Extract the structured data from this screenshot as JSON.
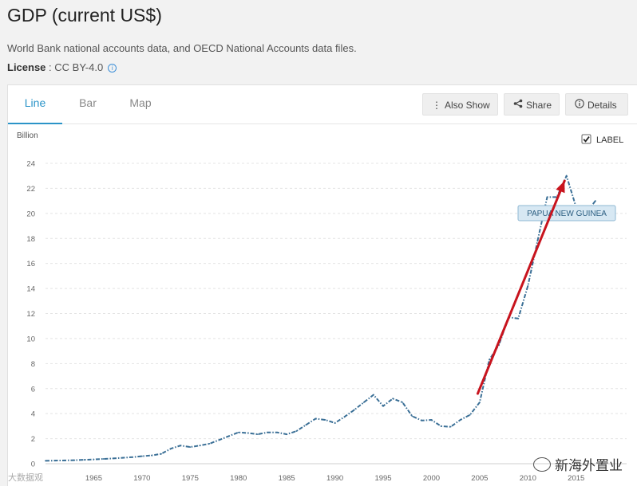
{
  "header": {
    "title": "GDP (current US$)",
    "source": "World Bank national accounts data, and OECD National Accounts data files.",
    "license_label": "License",
    "license_sep": " : ",
    "license_value": "CC BY-4.0",
    "info_icon": "i"
  },
  "tabs": [
    {
      "label": "Line",
      "active": true
    },
    {
      "label": "Bar",
      "active": false
    },
    {
      "label": "Map",
      "active": false
    }
  ],
  "toolbar": {
    "also_show": {
      "label": "Also Show",
      "icon": "vertical-dots-icon"
    },
    "share": {
      "label": "Share",
      "icon": "share-icon"
    },
    "details": {
      "label": "Details",
      "icon": "info-icon"
    }
  },
  "label_toggle": {
    "label": "LABEL",
    "checked": true
  },
  "watermark": {
    "text": "新海外置业",
    "logo_text": "大数据观"
  },
  "colors": {
    "line": "#3a6f96",
    "accent": "#2b94c8",
    "arrow": "#c8141e",
    "tooltip_bg": "#d7e8f3",
    "tooltip_border": "#8fb8d3"
  },
  "chart_data": {
    "type": "line",
    "title": "GDP (current US$)",
    "ylabel": "Billion",
    "xlabel": "",
    "ylim": [
      0,
      24
    ],
    "xlim": [
      1960,
      2018
    ],
    "yticks": [
      0,
      2,
      4,
      6,
      8,
      10,
      12,
      14,
      16,
      18,
      20,
      22,
      24
    ],
    "xticks": [
      1965,
      1970,
      1975,
      1980,
      1985,
      1990,
      1995,
      2000,
      2005,
      2010,
      2015
    ],
    "grid": true,
    "series": [
      {
        "name": "PAPUA NEW GUINEA",
        "x": [
          1960,
          1961,
          1962,
          1963,
          1964,
          1965,
          1966,
          1967,
          1968,
          1969,
          1970,
          1971,
          1972,
          1973,
          1974,
          1975,
          1976,
          1977,
          1978,
          1979,
          1980,
          1981,
          1982,
          1983,
          1984,
          1985,
          1986,
          1987,
          1988,
          1989,
          1990,
          1991,
          1992,
          1993,
          1994,
          1995,
          1996,
          1997,
          1998,
          1999,
          2000,
          2001,
          2002,
          2003,
          2004,
          2005,
          2006,
          2007,
          2008,
          2009,
          2010,
          2011,
          2012,
          2013,
          2014,
          2015,
          2016,
          2017
        ],
        "values": [
          0.23,
          0.25,
          0.26,
          0.28,
          0.31,
          0.34,
          0.38,
          0.42,
          0.47,
          0.52,
          0.6,
          0.66,
          0.78,
          1.2,
          1.45,
          1.33,
          1.45,
          1.6,
          1.9,
          2.2,
          2.5,
          2.45,
          2.35,
          2.5,
          2.5,
          2.35,
          2.6,
          3.1,
          3.6,
          3.5,
          3.25,
          3.75,
          4.3,
          4.9,
          5.5,
          4.6,
          5.2,
          4.9,
          3.8,
          3.45,
          3.5,
          3.0,
          2.95,
          3.5,
          3.9,
          4.9,
          8.3,
          9.5,
          11.7,
          11.6,
          14.2,
          17.8,
          21.3,
          21.3,
          23.0,
          20.5,
          20.0,
          21.0
        ]
      }
    ],
    "tooltip": {
      "label": "PAPUA NEW GUINEA"
    },
    "annotations": [
      {
        "type": "arrow",
        "from": [
          2004.8,
          5.6
        ],
        "to": [
          2013.8,
          22.6
        ]
      }
    ]
  }
}
